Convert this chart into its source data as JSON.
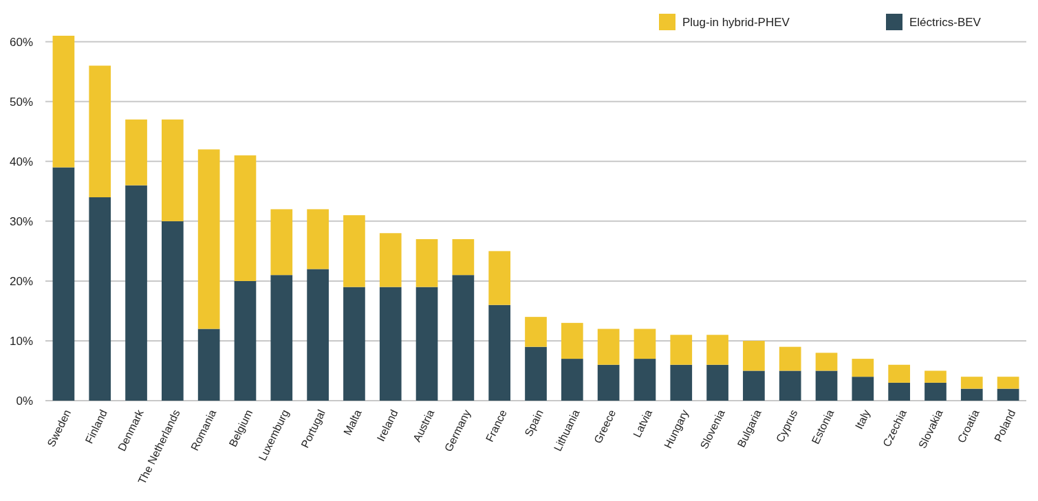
{
  "chart_data": {
    "type": "bar",
    "stacked": true,
    "categories": [
      "Sweden",
      "Finland",
      "Denmark",
      "The Netherlands",
      "Romania",
      "Belgium",
      "Luxemburg",
      "Portugal",
      "Malta",
      "Ireland",
      "Austria",
      "Germany",
      "France",
      "Spain",
      "Lithuania",
      "Greece",
      "Latvia",
      "Hungary",
      "Slovenia",
      "Bulgaria",
      "Cyprus",
      "Estonia",
      "Italy",
      "Czechia",
      "Slovakia",
      "Croatia",
      "Poland"
    ],
    "series": [
      {
        "name": "Eléctrics-BEV",
        "color": "#2f4d5c",
        "values": [
          39,
          34,
          36,
          30,
          12,
          20,
          21,
          22,
          19,
          19,
          19,
          21,
          16,
          9,
          7,
          6,
          7,
          6,
          6,
          5,
          5,
          5,
          4,
          3,
          3,
          2,
          2
        ]
      },
      {
        "name": "Plug-in hybrid-PHEV",
        "color": "#f0c52e",
        "values": [
          22,
          22,
          11,
          17,
          30,
          21,
          11,
          10,
          12,
          9,
          8,
          6,
          9,
          5,
          6,
          6,
          5,
          5,
          5,
          5,
          4,
          3,
          3,
          3,
          2,
          2,
          2
        ]
      }
    ],
    "ylim": [
      0,
      61
    ],
    "yticks": [
      {
        "value": 0,
        "label": "0%"
      },
      {
        "value": 10,
        "label": "10%"
      },
      {
        "value": 20,
        "label": "20%"
      },
      {
        "value": 30,
        "label": "30%"
      },
      {
        "value": 40,
        "label": "40%"
      },
      {
        "value": 50,
        "label": "50%"
      },
      {
        "value": 60,
        "label": "60%"
      }
    ],
    "grid": "y",
    "legend": "top right"
  }
}
